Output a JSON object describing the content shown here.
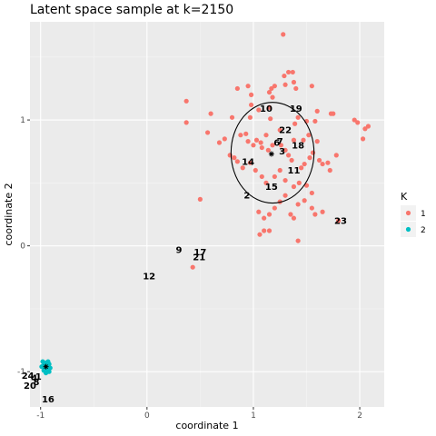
{
  "chart_data": {
    "type": "scatter",
    "title": "Latent space sample at k=2150",
    "xlabel": "coordinate 1",
    "ylabel": "coordinate 2",
    "xlim": [
      -1.1,
      2.23
    ],
    "ylim": [
      -1.28,
      1.78
    ],
    "x_ticks": [
      -1,
      0,
      1,
      2
    ],
    "y_ticks": [
      -1,
      0,
      1
    ],
    "x_tick_labels": [
      "-1",
      "0",
      "1",
      "2"
    ],
    "y_tick_labels": [
      "-1",
      "0",
      "1"
    ],
    "grid": true,
    "legend": {
      "title": "K",
      "position": "right",
      "entries": [
        {
          "label": "1",
          "color": "#F8766D"
        },
        {
          "label": "2",
          "color": "#00BFC4"
        }
      ]
    },
    "series": [
      {
        "name": "1",
        "color": "#F8766D",
        "points": [
          [
            1.28,
            1.68
          ],
          [
            1.33,
            1.38
          ],
          [
            1.37,
            1.38
          ],
          [
            1.29,
            1.35
          ],
          [
            1.38,
            1.3
          ],
          [
            1.17,
            1.25
          ],
          [
            0.85,
            1.25
          ],
          [
            0.95,
            1.27
          ],
          [
            1.2,
            1.27
          ],
          [
            1.55,
            1.27
          ],
          [
            0.98,
            1.2
          ],
          [
            1.18,
            1.18
          ],
          [
            1.4,
            1.25
          ],
          [
            1.3,
            1.28
          ],
          [
            1.15,
            1.22
          ],
          [
            0.98,
            1.12
          ],
          [
            1.15,
            1.1
          ],
          [
            1.05,
            1.08
          ],
          [
            0.6,
            1.05
          ],
          [
            0.8,
            1.02
          ],
          [
            0.97,
            1.02
          ],
          [
            1.16,
            1.01
          ],
          [
            1.42,
            1.02
          ],
          [
            0.37,
            1.15
          ],
          [
            0.37,
            0.98
          ],
          [
            1.98,
            0.98
          ],
          [
            1.95,
            1.0
          ],
          [
            2.08,
            0.95
          ],
          [
            2.05,
            0.93
          ],
          [
            2.03,
            0.85
          ],
          [
            1.6,
            1.07
          ],
          [
            1.73,
            1.05
          ],
          [
            1.75,
            1.05
          ],
          [
            1.58,
            0.99
          ],
          [
            1.5,
            0.99
          ],
          [
            1.39,
            0.97
          ],
          [
            1.25,
            0.92
          ],
          [
            1.12,
            0.88
          ],
          [
            1.03,
            0.84
          ],
          [
            0.95,
            0.83
          ],
          [
            0.88,
            0.88
          ],
          [
            0.93,
            0.89
          ],
          [
            1.07,
            0.82
          ],
          [
            1.0,
            0.8
          ],
          [
            0.73,
            0.85
          ],
          [
            0.68,
            0.82
          ],
          [
            0.57,
            0.9
          ],
          [
            0.78,
            0.72
          ],
          [
            0.82,
            0.7
          ],
          [
            0.85,
            0.67
          ],
          [
            0.9,
            0.62
          ],
          [
            0.97,
            0.66
          ],
          [
            1.08,
            0.78
          ],
          [
            1.14,
            0.76
          ],
          [
            1.18,
            0.8
          ],
          [
            1.26,
            0.8
          ],
          [
            1.3,
            0.76
          ],
          [
            1.33,
            0.72
          ],
          [
            1.36,
            0.68
          ],
          [
            1.45,
            0.62
          ],
          [
            1.48,
            0.65
          ],
          [
            1.53,
            0.7
          ],
          [
            1.56,
            0.74
          ],
          [
            1.6,
            0.83
          ],
          [
            1.62,
            0.68
          ],
          [
            1.65,
            0.65
          ],
          [
            1.7,
            0.66
          ],
          [
            1.78,
            0.72
          ],
          [
            1.72,
            0.6
          ],
          [
            1.52,
            0.88
          ],
          [
            1.47,
            0.84
          ],
          [
            1.38,
            0.84
          ],
          [
            1.02,
            0.6
          ],
          [
            1.08,
            0.55
          ],
          [
            1.12,
            0.5
          ],
          [
            1.2,
            0.55
          ],
          [
            1.25,
            0.6
          ],
          [
            1.3,
            0.52
          ],
          [
            1.38,
            0.47
          ],
          [
            1.43,
            0.5
          ],
          [
            1.5,
            0.48
          ],
          [
            1.55,
            0.42
          ],
          [
            1.3,
            0.4
          ],
          [
            1.25,
            0.35
          ],
          [
            1.42,
            0.33
          ],
          [
            1.48,
            0.36
          ],
          [
            1.55,
            0.3
          ],
          [
            1.65,
            0.27
          ],
          [
            1.58,
            0.25
          ],
          [
            1.2,
            0.3
          ],
          [
            1.15,
            0.25
          ],
          [
            1.1,
            0.22
          ],
          [
            1.05,
            0.27
          ],
          [
            1.35,
            0.25
          ],
          [
            1.38,
            0.22
          ],
          [
            1.1,
            0.12
          ],
          [
            1.06,
            0.09
          ],
          [
            1.15,
            0.12
          ],
          [
            1.42,
            0.04
          ],
          [
            1.8,
            0.2
          ],
          [
            0.5,
            0.37
          ],
          [
            0.43,
            -0.17
          ]
        ]
      },
      {
        "name": "2",
        "color": "#00BFC4",
        "points": [
          [
            -0.97,
            -0.95
          ],
          [
            -0.95,
            -0.93
          ],
          [
            -0.93,
            -0.96
          ],
          [
            -0.96,
            -0.98
          ],
          [
            -0.94,
            -0.99
          ],
          [
            -0.92,
            -0.94
          ],
          [
            -0.98,
            -0.92
          ],
          [
            -0.95,
            -0.96
          ],
          [
            -0.93,
            -0.92
          ],
          [
            -0.97,
            -0.99
          ],
          [
            -0.94,
            -1.0
          ],
          [
            -0.99,
            -0.96
          ],
          [
            -0.91,
            -0.97
          ],
          [
            -0.96,
            -0.94
          ],
          [
            -0.95,
            -1.01
          ],
          [
            -0.92,
            -1.0
          ]
        ]
      }
    ],
    "centers": [
      {
        "x": 1.17,
        "y": 0.73
      },
      {
        "x": -0.95,
        "y": -0.96
      }
    ],
    "ellipse": {
      "cx": 1.18,
      "cy": 0.74,
      "rx": 0.39,
      "ry": 0.4
    },
    "labels": [
      {
        "text": "10",
        "x": 1.12,
        "y": 1.09
      },
      {
        "text": "19",
        "x": 1.4,
        "y": 1.09
      },
      {
        "text": "22",
        "x": 1.3,
        "y": 0.92
      },
      {
        "text": "6",
        "x": 1.22,
        "y": 0.82
      },
      {
        "text": "7",
        "x": 1.25,
        "y": 0.83
      },
      {
        "text": "18",
        "x": 1.42,
        "y": 0.8
      },
      {
        "text": "3",
        "x": 1.27,
        "y": 0.75
      },
      {
        "text": "14",
        "x": 0.95,
        "y": 0.67
      },
      {
        "text": "11",
        "x": 1.38,
        "y": 0.6
      },
      {
        "text": "15",
        "x": 1.17,
        "y": 0.47
      },
      {
        "text": "2",
        "x": 0.94,
        "y": 0.4
      },
      {
        "text": "23",
        "x": 1.82,
        "y": 0.2
      },
      {
        "text": "9",
        "x": 0.3,
        "y": -0.03
      },
      {
        "text": "17",
        "x": 0.5,
        "y": -0.05
      },
      {
        "text": "21",
        "x": 0.49,
        "y": -0.09
      },
      {
        "text": "12",
        "x": 0.02,
        "y": -0.24
      },
      {
        "text": "24",
        "x": -1.12,
        "y": -1.03
      },
      {
        "text": "4",
        "x": -1.06,
        "y": -1.05
      },
      {
        "text": "1",
        "x": -1.02,
        "y": -1.04
      },
      {
        "text": "8",
        "x": -1.04,
        "y": -1.08
      },
      {
        "text": "20",
        "x": -1.1,
        "y": -1.11
      },
      {
        "text": "16",
        "x": -0.93,
        "y": -1.22
      }
    ]
  }
}
